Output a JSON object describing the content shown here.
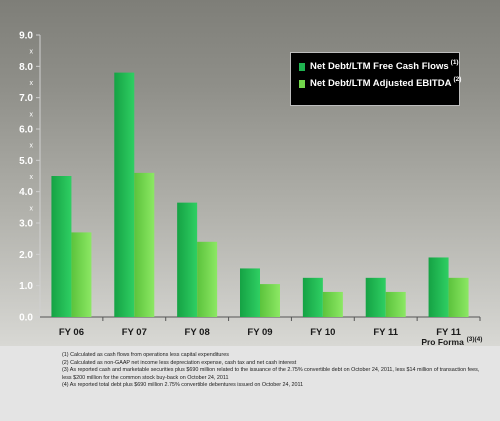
{
  "chart_data": {
    "type": "bar",
    "categories": [
      "FY 06",
      "FY 07",
      "FY 08",
      "FY 09",
      "FY 10",
      "FY 11",
      "FY 11"
    ],
    "category_sublabels": [
      "",
      "",
      "",
      "",
      "",
      "",
      "Pro Forma"
    ],
    "category_superscripts": [
      "",
      "",
      "",
      "",
      "",
      "",
      "(3)(4)"
    ],
    "series": [
      {
        "name": "Net Debt/LTM Free Cash Flows",
        "superscript": "(1)",
        "values": [
          4.5,
          7.8,
          3.65,
          1.55,
          1.25,
          1.25,
          1.9
        ],
        "color": "#1fb350"
      },
      {
        "name": "Net Debt/LTM Adjusted EBITDA",
        "superscript": "(2)",
        "values": [
          2.7,
          4.6,
          2.4,
          1.05,
          0.8,
          0.8,
          1.25
        ],
        "color": "#72d64c"
      }
    ],
    "ylim": [
      0,
      9
    ],
    "yticks": [
      "0.0",
      "1.0",
      "2.0",
      "3.0",
      "4.0",
      "5.0",
      "6.0",
      "7.0",
      "8.0",
      "9.0"
    ],
    "ytick_minor_label": "x",
    "grid": false,
    "legend_position": "top-right",
    "legend_background": "#000000"
  },
  "footnotes": [
    "(1) Calculated as cash flows from operations less capital expenditures",
    "(2) Calculated as non-GAAP net income less depreciation expense, cash tax and net cash interest",
    "(3) As reported cash and marketable securities plus $690 million related to the issuance of the 2.75% convertible debt on October 24, 2011, less $14 million of transaction fees,",
    "less $200 million for the common stock buy-back on October 24, 2011",
    "(4) As reported total debt plus $690 million 2.75% convertible debentures issued on October 24, 2011"
  ]
}
